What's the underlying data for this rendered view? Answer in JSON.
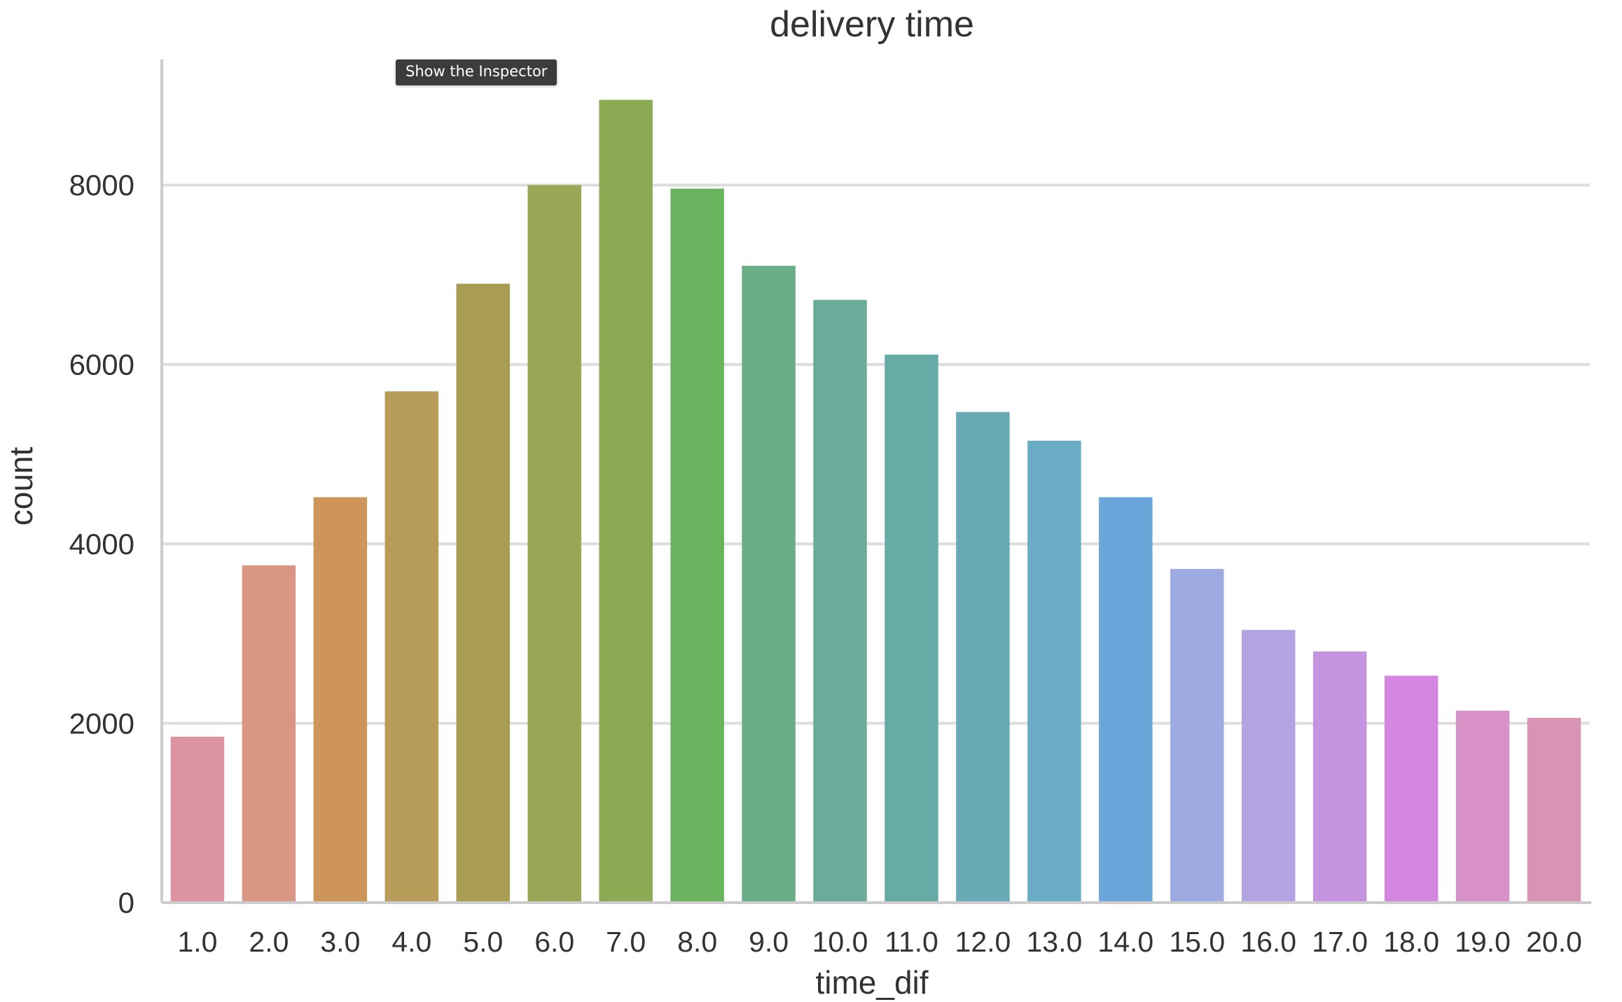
{
  "tooltip": {
    "text": "Show the Inspector"
  },
  "chart_data": {
    "type": "bar",
    "title": "delivery time",
    "xlabel": "time_dif",
    "ylabel": "count",
    "categories": [
      "1.0",
      "2.0",
      "3.0",
      "4.0",
      "5.0",
      "6.0",
      "7.0",
      "8.0",
      "9.0",
      "10.0",
      "11.0",
      "12.0",
      "13.0",
      "14.0",
      "15.0",
      "16.0",
      "17.0",
      "18.0",
      "19.0",
      "20.0"
    ],
    "values": [
      1850,
      3760,
      4520,
      5700,
      6900,
      8000,
      8950,
      7960,
      7100,
      6720,
      6110,
      5470,
      5150,
      4520,
      3720,
      3040,
      2800,
      2530,
      2140,
      2060
    ],
    "colors": [
      "#dd94a1",
      "#d99685",
      "#cd9559",
      "#b79b58",
      "#a99c53",
      "#9aa555",
      "#8aaa53",
      "#6ab35e",
      "#69ae86",
      "#68ac99",
      "#67aba7",
      "#67a9b4",
      "#6aabc5",
      "#6ba6da",
      "#9eaae2",
      "#b2a4e3",
      "#c693e0",
      "#d586e0",
      "#d791c7",
      "#d993b5"
    ],
    "yticks": [
      0,
      2000,
      4000,
      6000,
      8000
    ],
    "ylim": [
      0,
      9400
    ],
    "grid": true
  }
}
